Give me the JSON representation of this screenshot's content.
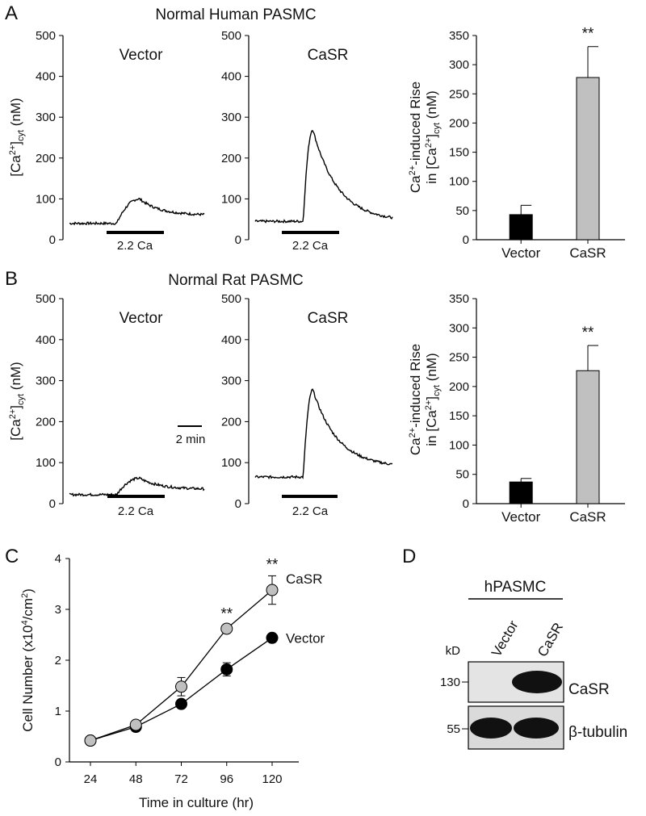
{
  "panels": {
    "A": {
      "letter": "A",
      "title": "Normal Human PASMC",
      "trace_ylabel_main": "[Ca",
      "trace_ylabel_sup": "2+",
      "trace_ylabel_after": "]",
      "trace_ylabel_sub": "cyt",
      "trace_ylabel_unit": " (nM)",
      "stim_label": "2.2 Ca",
      "bar_ylabel_line1_main": "Ca",
      "bar_ylabel_line1_sup": "2+",
      "bar_ylabel_line1_rest": "-induced Rise",
      "bar_ylabel_line2_pre": "in [Ca",
      "bar_ylabel_line2_sup": "2+",
      "bar_ylabel_line2_mid": "]",
      "bar_ylabel_line2_sub": "cyt",
      "bar_ylabel_line2_unit": " (nM)",
      "significance": "**",
      "traces": [
        {
          "name": "Vector",
          "baseline": 40,
          "peak": 100,
          "end": 60
        },
        {
          "name": "CaSR",
          "baseline": 45,
          "peak": 270,
          "end": 45
        }
      ]
    },
    "B": {
      "letter": "B",
      "title": "Normal Rat PASMC",
      "trace_ylabel_main": "[Ca",
      "trace_ylabel_sup": "2+",
      "trace_ylabel_after": "]",
      "trace_ylabel_sub": "cyt",
      "trace_ylabel_unit": " (nM)",
      "stim_label": "2.2 Ca",
      "scale_label": "2 min",
      "bar_ylabel_line1_main": "Ca",
      "bar_ylabel_line1_sup": "2+",
      "bar_ylabel_line1_rest": "-induced Rise",
      "bar_ylabel_line2_pre": "in [Ca",
      "bar_ylabel_line2_sup": "2+",
      "bar_ylabel_line2_mid": "]",
      "bar_ylabel_line2_sub": "cyt",
      "bar_ylabel_line2_unit": " (nM)",
      "significance": "**",
      "traces": [
        {
          "name": "Vector",
          "baseline": 22,
          "peak": 62,
          "end": 35
        },
        {
          "name": "CaSR",
          "baseline": 65,
          "peak": 278,
          "end": 88
        }
      ]
    },
    "C": {
      "letter": "C",
      "ylabel_main": "Cell Number (x10",
      "ylabel_sup1": "4",
      "ylabel_mid": "/cm",
      "ylabel_sup2": "2",
      "ylabel_end": ")",
      "significance": "**"
    },
    "D": {
      "letter": "D",
      "header": "hPASMC",
      "lane_labels": [
        "Vector",
        "CaSR"
      ],
      "kd_label": "kD",
      "markers": [
        "130",
        "55"
      ],
      "bands": [
        "CaSR",
        "β-tubulin"
      ]
    }
  },
  "chart_data": [
    {
      "type": "line",
      "panel": "A",
      "series": [
        {
          "name": "Vector"
        },
        {
          "name": "CaSR"
        }
      ],
      "ylim": [
        0,
        500
      ],
      "yticks": [
        0,
        100,
        200,
        300,
        400,
        500
      ]
    },
    {
      "type": "bar",
      "panel": "A",
      "categories": [
        "Vector",
        "CaSR"
      ],
      "values": [
        43,
        278
      ],
      "errors": [
        16,
        53
      ],
      "colors": [
        "#000000",
        "#c0c0c0"
      ],
      "ylim": [
        0,
        350
      ],
      "yticks": [
        0,
        50,
        100,
        150,
        200,
        250,
        300,
        350
      ]
    },
    {
      "type": "line",
      "panel": "B",
      "series": [
        {
          "name": "Vector"
        },
        {
          "name": "CaSR"
        }
      ],
      "ylim": [
        0,
        500
      ],
      "yticks": [
        0,
        100,
        200,
        300,
        400,
        500
      ]
    },
    {
      "type": "bar",
      "panel": "B",
      "categories": [
        "Vector",
        "CaSR"
      ],
      "values": [
        37,
        227
      ],
      "errors": [
        6,
        43
      ],
      "colors": [
        "#000000",
        "#c0c0c0"
      ],
      "ylim": [
        0,
        350
      ],
      "yticks": [
        0,
        50,
        100,
        150,
        200,
        250,
        300,
        350
      ]
    },
    {
      "type": "line",
      "panel": "C",
      "xlabel": "Time in culture (hr)",
      "x": [
        24,
        48,
        72,
        96,
        120
      ],
      "xticks": [
        24,
        48,
        72,
        96,
        120
      ],
      "ylim": [
        0,
        4
      ],
      "yticks": [
        0,
        1,
        2,
        3,
        4
      ],
      "series": [
        {
          "name": "CaSR",
          "values": [
            0.42,
            0.73,
            1.48,
            2.62,
            3.38
          ],
          "errors": [
            0.03,
            0.05,
            0.18,
            0.07,
            0.28
          ],
          "color": "#c0c0c0"
        },
        {
          "name": "Vector",
          "values": [
            0.42,
            0.69,
            1.14,
            1.82,
            2.44
          ],
          "errors": [
            0.03,
            0.05,
            0.08,
            0.13,
            0.06
          ],
          "color": "#000000"
        }
      ],
      "significant_at": [
        96,
        120
      ]
    }
  ]
}
